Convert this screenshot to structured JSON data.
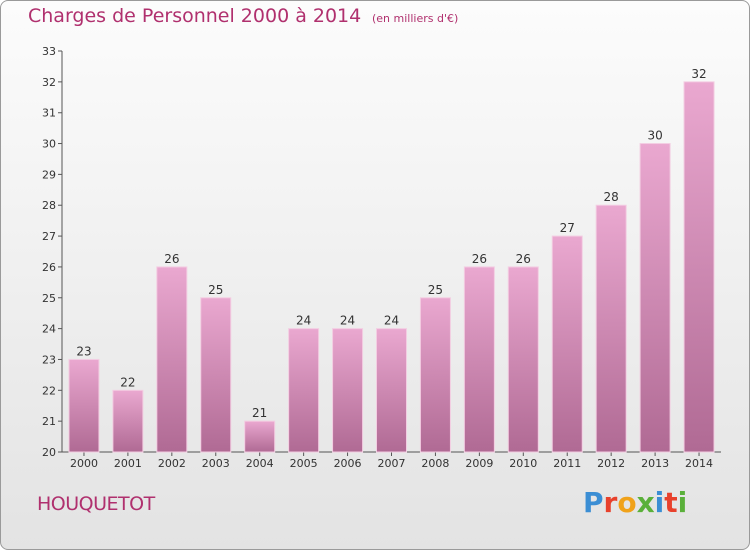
{
  "title": "Charges de Personnel 2000 à 2014",
  "subtitle": "(en milliers d'€)",
  "commune": "HOUQUETOT",
  "logo": {
    "text": "Proxiti",
    "colors": [
      "#3b8ed4",
      "#e8412c",
      "#f0a21a",
      "#5ab03a",
      "#3b8ed4",
      "#e8412c",
      "#5ab03a"
    ]
  },
  "colors": {
    "accent": "#b0306e",
    "bar_top": "#eaa8d0",
    "bar_bottom": "#b06a94"
  },
  "chart_data": {
    "type": "bar",
    "categories": [
      "2000",
      "2001",
      "2002",
      "2003",
      "2004",
      "2005",
      "2006",
      "2007",
      "2008",
      "2009",
      "2010",
      "2011",
      "2012",
      "2013",
      "2014"
    ],
    "values": [
      23,
      22,
      26,
      25,
      21,
      24,
      24,
      24,
      25,
      26,
      26,
      27,
      28,
      30,
      32
    ],
    "title": "Charges de Personnel 2000 à 2014",
    "ylim": [
      20,
      33
    ],
    "yticks": [
      20,
      21,
      22,
      23,
      24,
      25,
      26,
      27,
      28,
      29,
      30,
      31,
      32,
      33
    ],
    "grid": false,
    "data_labels": true
  }
}
